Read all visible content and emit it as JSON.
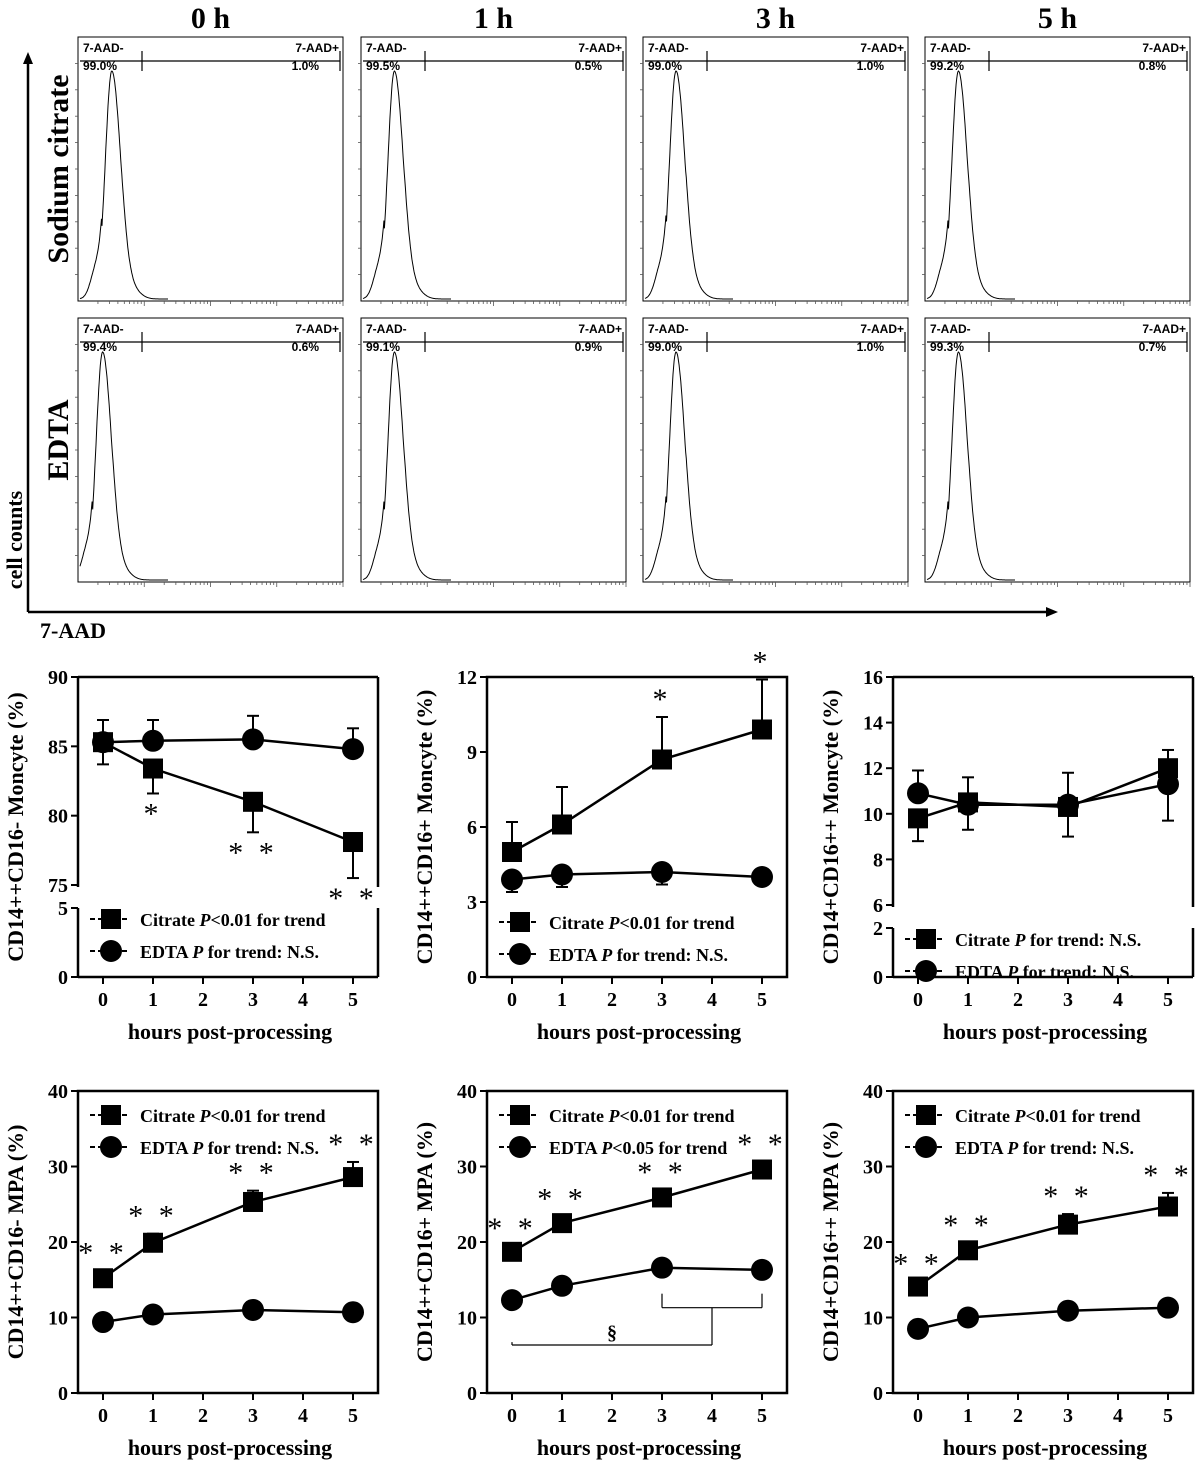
{
  "flow": {
    "time_labels": [
      "0 h",
      "1 h",
      "3 h",
      "5 h"
    ],
    "row_labels": [
      "Sodium citrate",
      "EDTA"
    ],
    "y_axis_label": "cell counts",
    "x_axis_label": "7-AAD",
    "gate_neg_label": "7-AAD-",
    "gate_pos_label": "7-AAD+",
    "gates": [
      [
        {
          "neg": "99.0%",
          "pos": "1.0%"
        },
        {
          "neg": "99.5%",
          "pos": "0.5%"
        },
        {
          "neg": "99.0%",
          "pos": "1.0%"
        },
        {
          "neg": "99.2%",
          "pos": "0.8%"
        }
      ],
      [
        {
          "neg": "99.4%",
          "pos": "0.6%"
        },
        {
          "neg": "99.1%",
          "pos": "0.9%"
        },
        {
          "neg": "99.0%",
          "pos": "1.0%"
        },
        {
          "neg": "99.3%",
          "pos": "0.7%"
        }
      ]
    ],
    "peak_position_fraction": [
      [
        0.44,
        0.42,
        0.4,
        0.42
      ],
      [
        0.38,
        0.42,
        0.4,
        0.42
      ]
    ]
  },
  "chart_data": [
    {
      "type": "line",
      "ylabel": "CD14++CD16- Moncyte (%)",
      "xlabel": "hours post-processing",
      "x": [
        0,
        1,
        3,
        5
      ],
      "xticks": [
        0,
        1,
        2,
        3,
        4,
        5
      ],
      "ylim_upper": [
        75,
        90
      ],
      "yticks_upper": [
        75,
        80,
        85,
        90
      ],
      "ylim_lower": [
        0,
        5
      ],
      "yticks_lower": [
        0,
        5
      ],
      "series": [
        {
          "name": "Citrate",
          "marker": "square",
          "values": [
            85.3,
            83.4,
            81.0,
            78.1
          ],
          "errors": [
            1.6,
            1.8,
            2.2,
            2.6
          ],
          "err_dir": "down"
        },
        {
          "name": "EDTA",
          "marker": "circle",
          "values": [
            85.3,
            85.4,
            85.5,
            84.8
          ],
          "errors": [
            1.6,
            1.5,
            1.7,
            1.5
          ],
          "err_dir": "up"
        }
      ],
      "stars": [
        {
          "x": 1,
          "text": "*",
          "pos": "below"
        },
        {
          "x": 3,
          "text": "**",
          "pos": "below"
        },
        {
          "x": 5,
          "text": "**",
          "pos": "below"
        }
      ],
      "legend": [
        {
          "name": "Citrate",
          "marker": "square",
          "stat": "for trend",
          "pdisp": "P<0.01"
        },
        {
          "name": "EDTA",
          "marker": "circle",
          "stat": "for trend: N.S.",
          "pdisp": "P"
        }
      ],
      "legend_position": "bottom-left"
    },
    {
      "type": "line",
      "ylabel": "CD14++CD16+ Moncyte (%)",
      "xlabel": "hours post-processing",
      "x": [
        0,
        1,
        3,
        5
      ],
      "xticks": [
        0,
        1,
        2,
        3,
        4,
        5
      ],
      "ylim": [
        0,
        12
      ],
      "yticks": [
        0,
        3,
        6,
        9,
        12
      ],
      "series": [
        {
          "name": "Citrate",
          "marker": "square",
          "values": [
            5.0,
            6.1,
            8.7,
            9.9
          ],
          "errors": [
            1.2,
            1.5,
            1.7,
            2.0
          ],
          "err_dir": "up"
        },
        {
          "name": "EDTA",
          "marker": "circle",
          "values": [
            3.9,
            4.1,
            4.2,
            4.0
          ],
          "errors": [
            0.5,
            0.5,
            0.5,
            0.3
          ],
          "err_dir": "down"
        }
      ],
      "stars": [
        {
          "x": 3,
          "text": "*",
          "pos": "above"
        },
        {
          "x": 5,
          "text": "*",
          "pos": "above"
        }
      ],
      "legend": [
        {
          "name": "Citrate",
          "marker": "square",
          "stat": "for trend",
          "pdisp": "P<0.01"
        },
        {
          "name": "EDTA",
          "marker": "circle",
          "stat": "for trend: N.S.",
          "pdisp": "P"
        }
      ],
      "legend_position": "bottom-left"
    },
    {
      "type": "line",
      "ylabel": "CD14+CD16++ Moncyte (%)",
      "xlabel": "hours post-processing",
      "x": [
        0,
        1,
        3,
        5
      ],
      "xticks": [
        0,
        1,
        2,
        3,
        4,
        5
      ],
      "ylim_upper": [
        6,
        16
      ],
      "yticks_upper": [
        6,
        8,
        10,
        12,
        14,
        16
      ],
      "ylim_lower": [
        0,
        2
      ],
      "yticks_lower": [
        0,
        2
      ],
      "series": [
        {
          "name": "Citrate",
          "marker": "square",
          "values": [
            9.8,
            10.5,
            10.3,
            12.0
          ],
          "errors": [
            1.0,
            1.2,
            1.3,
            2.3
          ],
          "err_dir": "down"
        },
        {
          "name": "EDTA",
          "marker": "circle",
          "values": [
            10.9,
            10.4,
            10.4,
            11.3
          ],
          "errors": [
            1.0,
            1.2,
            1.4,
            1.5
          ],
          "err_dir": "up"
        }
      ],
      "stars": [],
      "legend": [
        {
          "name": "Citrate",
          "marker": "square",
          "stat": "for trend: N.S.",
          "pdisp": "P"
        },
        {
          "name": "EDTA",
          "marker": "circle",
          "stat": "for trend: N.S.",
          "pdisp": "P"
        }
      ],
      "legend_position": "bottom-left"
    },
    {
      "type": "line",
      "ylabel": "CD14++CD16- MPA (%)",
      "xlabel": "hours post-processing",
      "x": [
        0,
        1,
        3,
        5
      ],
      "xticks": [
        0,
        1,
        2,
        3,
        4,
        5
      ],
      "ylim": [
        0,
        40
      ],
      "yticks": [
        0,
        10,
        20,
        30,
        40
      ],
      "series": [
        {
          "name": "Citrate",
          "marker": "square",
          "values": [
            15.2,
            19.9,
            25.3,
            28.6
          ],
          "errors": [
            1.0,
            1.2,
            1.5,
            2.0
          ],
          "err_dir": "up"
        },
        {
          "name": "EDTA",
          "marker": "circle",
          "values": [
            9.4,
            10.4,
            11.0,
            10.7
          ],
          "errors": [
            0.5,
            0.5,
            0.5,
            0.5
          ],
          "err_dir": "up"
        }
      ],
      "stars": [
        {
          "x": 0,
          "text": "**",
          "pos": "above"
        },
        {
          "x": 1,
          "text": "**",
          "pos": "above"
        },
        {
          "x": 3,
          "text": "**",
          "pos": "above"
        },
        {
          "x": 5,
          "text": "**",
          "pos": "above"
        }
      ],
      "legend": [
        {
          "name": "Citrate",
          "marker": "square",
          "stat": "for trend",
          "pdisp": "P<0.01"
        },
        {
          "name": "EDTA",
          "marker": "circle",
          "stat": "for trend: N.S.",
          "pdisp": "P"
        }
      ],
      "legend_position": "top-left"
    },
    {
      "type": "line",
      "ylabel": "CD14++CD16+ MPA (%)",
      "xlabel": "hours post-processing",
      "x": [
        0,
        1,
        3,
        5
      ],
      "xticks": [
        0,
        1,
        2,
        3,
        4,
        5
      ],
      "ylim": [
        0,
        40
      ],
      "yticks": [
        0,
        10,
        20,
        30,
        40
      ],
      "series": [
        {
          "name": "Citrate",
          "marker": "square",
          "values": [
            18.7,
            22.5,
            25.9,
            29.6
          ],
          "errors": [
            0.8,
            0.9,
            1.0,
            1.0
          ],
          "err_dir": "up"
        },
        {
          "name": "EDTA",
          "marker": "circle",
          "values": [
            12.3,
            14.2,
            16.6,
            16.3
          ],
          "errors": [
            0.5,
            0.5,
            0.5,
            0.5
          ],
          "err_dir": "up"
        }
      ],
      "stars": [
        {
          "x": 0,
          "text": "**",
          "pos": "above"
        },
        {
          "x": 1,
          "text": "**",
          "pos": "above"
        },
        {
          "x": 3,
          "text": "**",
          "pos": "above"
        },
        {
          "x": 5,
          "text": "**",
          "pos": "above"
        }
      ],
      "legend": [
        {
          "name": "Citrate",
          "marker": "square",
          "stat": "for trend",
          "pdisp": "P<0.01"
        },
        {
          "name": "EDTA",
          "marker": "circle",
          "stat": "for trend",
          "pdisp": "P<0.05"
        }
      ],
      "legend_position": "top-left",
      "bracket": {
        "label": "§",
        "left_x": [
          0,
          0
        ],
        "right_group": [
          3,
          5
        ],
        "join_x": 4
      }
    },
    {
      "type": "line",
      "ylabel": "CD14+CD16++ MPA (%)",
      "xlabel": "hours post-processing",
      "x": [
        0,
        1,
        3,
        5
      ],
      "xticks": [
        0,
        1,
        2,
        3,
        4,
        5
      ],
      "ylim": [
        0,
        40
      ],
      "yticks": [
        0,
        10,
        20,
        30,
        40
      ],
      "series": [
        {
          "name": "Citrate",
          "marker": "square",
          "values": [
            14.1,
            18.9,
            22.3,
            24.7
          ],
          "errors": [
            0.7,
            1.0,
            1.4,
            1.8
          ],
          "err_dir": "up"
        },
        {
          "name": "EDTA",
          "marker": "circle",
          "values": [
            8.5,
            10.0,
            10.9,
            11.3
          ],
          "errors": [
            0.5,
            0.5,
            0.5,
            0.5
          ],
          "err_dir": "up"
        }
      ],
      "stars": [
        {
          "x": 0,
          "text": "**",
          "pos": "above"
        },
        {
          "x": 1,
          "text": "**",
          "pos": "above"
        },
        {
          "x": 3,
          "text": "**",
          "pos": "above"
        },
        {
          "x": 5,
          "text": "**",
          "pos": "above"
        }
      ],
      "legend": [
        {
          "name": "Citrate",
          "marker": "square",
          "stat": "for trend",
          "pdisp": "P<0.01"
        },
        {
          "name": "EDTA",
          "marker": "circle",
          "stat": "for trend: N.S.",
          "pdisp": "P"
        }
      ],
      "legend_position": "top-left"
    }
  ]
}
